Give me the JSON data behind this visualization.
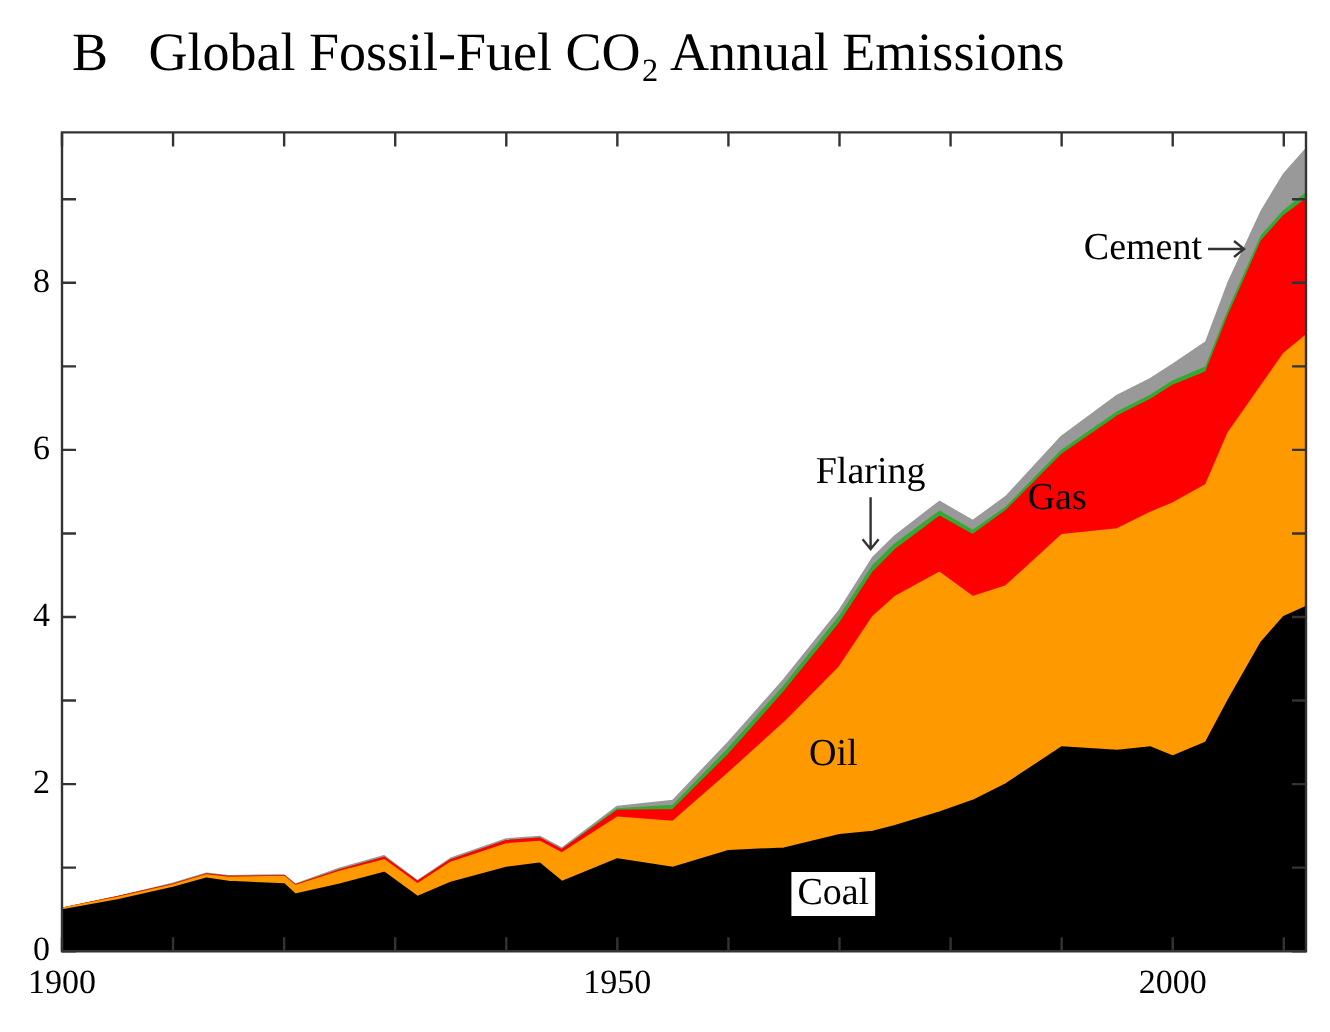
{
  "chart_data": {
    "type": "area",
    "title": "B   Global Fossil-Fuel CO₂ Annual Emissions",
    "stacked": true,
    "legend": false,
    "x": [
      1900,
      1905,
      1910,
      1913,
      1915,
      1920,
      1921,
      1925,
      1929,
      1932,
      1935,
      1940,
      1943,
      1945,
      1950,
      1955,
      1960,
      1965,
      1970,
      1973,
      1975,
      1979,
      1982,
      1985,
      1990,
      1995,
      1998,
      2000,
      2003,
      2005,
      2008,
      2010,
      2012
    ],
    "xlim": [
      1900,
      2012
    ],
    "xticks": [
      1900,
      {
        "value": 1910,
        "label": null
      },
      {
        "value": 1920,
        "label": null
      },
      {
        "value": 1930,
        "label": null
      },
      {
        "value": 1940,
        "label": null
      },
      1950,
      {
        "value": 1960,
        "label": null
      },
      {
        "value": 1970,
        "label": null
      },
      {
        "value": 1980,
        "label": null
      },
      {
        "value": 1990,
        "label": null
      },
      2000,
      {
        "value": 2010,
        "label": null
      }
    ],
    "ylim": [
      0,
      9.8
    ],
    "yticks": [
      0,
      {
        "value": 1,
        "label": null
      },
      2,
      {
        "value": 3,
        "label": null
      },
      4,
      {
        "value": 5,
        "label": null
      },
      6,
      {
        "value": 7,
        "label": null
      },
      8,
      {
        "value": 9,
        "label": null
      }
    ],
    "series": [
      {
        "name": "Coal",
        "color": "#000000",
        "values": [
          0.49,
          0.61,
          0.76,
          0.87,
          0.83,
          0.8,
          0.68,
          0.8,
          0.94,
          0.65,
          0.82,
          1.0,
          1.05,
          0.83,
          1.1,
          1.0,
          1.2,
          1.23,
          1.39,
          1.43,
          1.5,
          1.66,
          1.8,
          2.0,
          2.44,
          2.4,
          2.44,
          2.33,
          2.5,
          3.0,
          3.7,
          4.0,
          4.12
        ]
      },
      {
        "name": "Oil",
        "color": "#ff9900",
        "values": [
          0.02,
          0.03,
          0.03,
          0.04,
          0.05,
          0.09,
          0.1,
          0.15,
          0.15,
          0.15,
          0.24,
          0.28,
          0.26,
          0.34,
          0.5,
          0.55,
          0.93,
          1.5,
          2.01,
          2.57,
          2.74,
          2.87,
          2.44,
          2.37,
          2.54,
          2.65,
          2.81,
          3.03,
          3.08,
          3.2,
          3.07,
          3.15,
          3.25
        ]
      },
      {
        "name": "Gas",
        "color": "#ff0000",
        "values": [
          0,
          0.01,
          0.01,
          0.01,
          0.01,
          0.01,
          0.01,
          0.02,
          0.03,
          0.03,
          0.03,
          0.04,
          0.04,
          0.04,
          0.08,
          0.14,
          0.22,
          0.37,
          0.52,
          0.53,
          0.56,
          0.67,
          0.74,
          0.9,
          0.96,
          1.35,
          1.35,
          1.41,
          1.35,
          1.4,
          1.73,
          1.65,
          1.63
        ]
      },
      {
        "name": "Flaring",
        "color": "#33aa33",
        "values": [
          0,
          0,
          0,
          0,
          0,
          0,
          0,
          0,
          0,
          0,
          0,
          0,
          0,
          0,
          0.02,
          0.05,
          0.07,
          0.07,
          0.08,
          0.08,
          0.07,
          0.06,
          0.05,
          0.04,
          0.05,
          0.05,
          0.05,
          0.05,
          0.06,
          0.06,
          0.06,
          0.06,
          0.07
        ]
      },
      {
        "name": "Cement",
        "color": "#999999",
        "values": [
          0,
          0,
          0.01,
          0.01,
          0.01,
          0.01,
          0.01,
          0.02,
          0.02,
          0.01,
          0.02,
          0.02,
          0.02,
          0.02,
          0.03,
          0.06,
          0.08,
          0.08,
          0.08,
          0.1,
          0.1,
          0.12,
          0.12,
          0.13,
          0.17,
          0.2,
          0.2,
          0.2,
          0.3,
          0.34,
          0.3,
          0.44,
          0.53
        ]
      }
    ]
  }
}
